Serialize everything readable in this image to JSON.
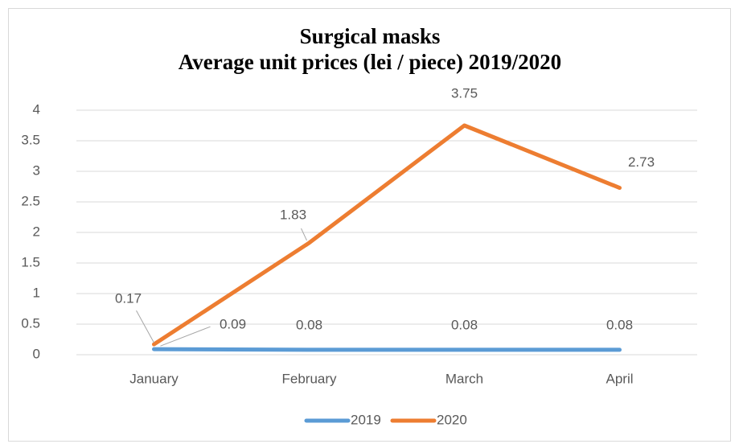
{
  "chart_data": {
    "type": "line",
    "title": "Surgical masks",
    "subtitle": "Average unit prices (lei / piece) 2019/2020",
    "categories": [
      "January",
      "February",
      "March",
      "April"
    ],
    "series": [
      {
        "name": "2019",
        "color": "#5b9bd5",
        "values": [
          0.09,
          0.08,
          0.08,
          0.08
        ]
      },
      {
        "name": "2020",
        "color": "#ed7d31",
        "values": [
          0.17,
          1.83,
          3.75,
          2.73
        ]
      }
    ],
    "ylim": [
      0,
      4
    ],
    "yticks": [
      0,
      0.5,
      1,
      1.5,
      2,
      2.5,
      3,
      3.5,
      4
    ],
    "grid": true,
    "legend": "bottom"
  }
}
